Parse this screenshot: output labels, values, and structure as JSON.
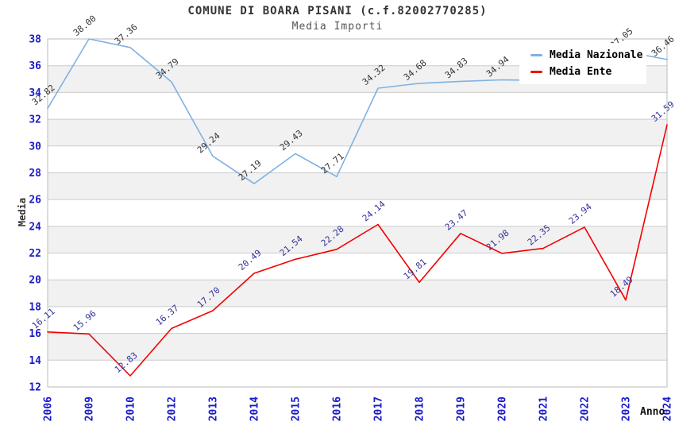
{
  "chart_data": {
    "type": "line",
    "title": "COMUNE DI BOARA PISANI (c.f.82002770285)",
    "subtitle": "Media Importi",
    "xlabel": "Anno",
    "ylabel": "Media",
    "categories": [
      "2006",
      "2009",
      "2010",
      "2012",
      "2013",
      "2014",
      "2015",
      "2016",
      "2017",
      "2018",
      "2019",
      "2020",
      "2021",
      "2022",
      "2023",
      "2024"
    ],
    "ylim": [
      12,
      38
    ],
    "ytick_step": 2,
    "grid": true,
    "alternating_bands": true,
    "legend_position": "top-right",
    "colors": {
      "axis_text": "#1A1AC8",
      "grid_line": "#CCCCCC",
      "plot_border": "#BBBBBB",
      "band_fill": "#F1F1F1",
      "title_text": "#333333",
      "subtitle_text": "#555555"
    },
    "series": [
      {
        "name": "Media Nazionale",
        "color": "#7EB1E3",
        "label_color": "#333333",
        "values": [
          32.82,
          38.0,
          37.36,
          34.79,
          29.24,
          27.19,
          29.43,
          27.71,
          34.32,
          34.68,
          34.83,
          34.94,
          34.9,
          35.2,
          37.05,
          36.46
        ],
        "labels": [
          "32.82",
          "38.00",
          "37.36",
          "34.79",
          "29.24",
          "27.19",
          "29.43",
          "27.71",
          "34.32",
          "34.68",
          "34.83",
          "34.94",
          "",
          "",
          "37.05",
          "36.46"
        ]
      },
      {
        "name": "Media Ente",
        "color": "#F40000",
        "label_color": "#333399",
        "values": [
          16.11,
          15.96,
          12.83,
          16.37,
          17.7,
          20.49,
          21.54,
          22.28,
          24.14,
          19.81,
          23.47,
          21.98,
          22.35,
          23.94,
          18.49,
          31.59
        ],
        "labels": [
          "16.11",
          "15.96",
          "12.83",
          "16.37",
          "17.70",
          "20.49",
          "21.54",
          "22.28",
          "24.14",
          "19.81",
          "23.47",
          "21.98",
          "22.35",
          "23.94",
          "18.49",
          "31.59"
        ]
      }
    ]
  }
}
